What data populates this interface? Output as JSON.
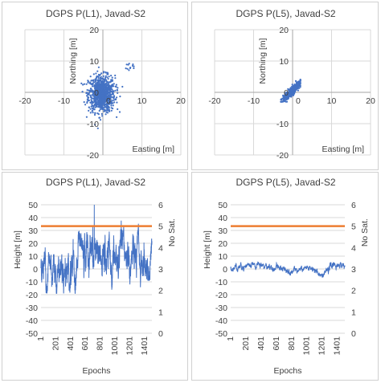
{
  "chart_data": [
    {
      "type": "scatter",
      "title": "DGPS P(L1), Javad-S2",
      "xlabel": "Easting [m]",
      "ylabel": "Northing [m]",
      "xlim": [
        -20,
        20
      ],
      "ylim": [
        -20,
        20
      ],
      "xticks": [
        "-20",
        "-10",
        "0",
        "10",
        "20"
      ],
      "yticks": [
        "20",
        "10",
        "0",
        "-10",
        "-20"
      ],
      "grid": true,
      "color": "#4472c4",
      "cluster": {
        "center": [
          0,
          0
        ],
        "x_range": [
          -5.5,
          5
        ],
        "y_range": [
          -11,
          8
        ],
        "outliers_x_range": [
          5,
          8
        ],
        "outliers_y_range": [
          7,
          9.5
        ]
      }
    },
    {
      "type": "scatter",
      "title": "DGPS P(L5), Javad-S2",
      "xlabel": "Easting [m]",
      "ylabel": "Northing [m]",
      "xlim": [
        -20,
        20
      ],
      "ylim": [
        -20,
        20
      ],
      "xticks": [
        "-20",
        "-10",
        "0",
        "10",
        "20"
      ],
      "yticks": [
        "20",
        "10",
        "0",
        "-10",
        "-20"
      ],
      "grid": true,
      "color": "#4472c4",
      "cluster": {
        "x_range": [
          -3,
          2
        ],
        "y_range": [
          -3,
          4
        ],
        "trend": "diagonal"
      }
    },
    {
      "type": "line",
      "title": "DGPS P(L1), Javad-S2",
      "xlabel": "Epochs",
      "ylabel": "Height [m]",
      "y2label": "No Sat.",
      "ylim": [
        -50,
        50
      ],
      "y2lim": [
        0,
        6
      ],
      "xlim": [
        1,
        1500
      ],
      "yticks": [
        "50",
        "40",
        "30",
        "20",
        "10",
        "0",
        "-10",
        "-20",
        "-30",
        "-40",
        "-50"
      ],
      "y2ticks": [
        "6",
        "5",
        "4",
        "3",
        "2",
        "1",
        "0"
      ],
      "xticks": [
        "1",
        "201",
        "401",
        "601",
        "801",
        "1001",
        "1201",
        "1401"
      ],
      "grid": true,
      "series": [
        {
          "values_range": [
            -19,
            50
          ],
          "mean": 5,
          "color": "#4472c4"
        },
        {
          "constant": 5,
          "axis": "y2",
          "color": "#ed7d31"
        }
      ]
    },
    {
      "type": "line",
      "title": "DGPS P(L5), Javad-S2",
      "xlabel": "Epochs",
      "ylabel": "Height [m]",
      "y2label": "No Sat.",
      "ylim": [
        -50,
        50
      ],
      "y2lim": [
        0,
        6
      ],
      "xlim": [
        1,
        1500
      ],
      "yticks": [
        "50",
        "40",
        "30",
        "20",
        "10",
        "0",
        "-10",
        "-20",
        "-30",
        "-40",
        "-50"
      ],
      "y2ticks": [
        "6",
        "5",
        "4",
        "3",
        "2",
        "1",
        "0"
      ],
      "xticks": [
        "1",
        "201",
        "401",
        "601",
        "801",
        "1001",
        "1201",
        "1401"
      ],
      "grid": true,
      "series": [
        {
          "values_range": [
            -8,
            5
          ],
          "mean": 1,
          "color": "#4472c4"
        },
        {
          "constant": 5,
          "axis": "y2",
          "color": "#ed7d31"
        }
      ]
    }
  ]
}
